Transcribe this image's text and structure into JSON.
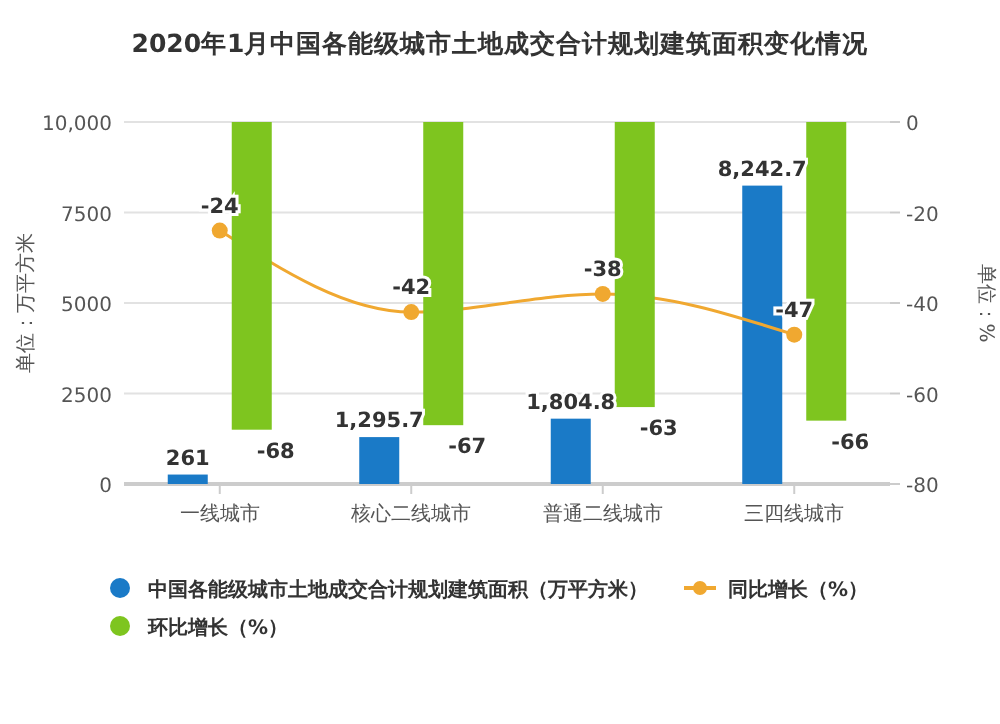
{
  "chart_data": {
    "type": "bar",
    "title": "2020年1月中国各能级城市土地成交合计规划建筑面积变化情况",
    "ylabel": "单位：万平方米",
    "y2label": "单位：%",
    "categories": [
      "一线城市",
      "核心二线城市",
      "普通二线城市",
      "三四线城市"
    ],
    "series": [
      {
        "name": "中国各能级城市土地成交合计规划建筑面积（万平方米）",
        "color": "#1a7ac7",
        "values": [
          261,
          1295.7,
          1804.8,
          8242.7
        ],
        "value_labels": [
          "261",
          "1,295.7",
          "1,804.8",
          "8,242.7"
        ]
      },
      {
        "name": "同比增长（%）",
        "type": "line",
        "axis": "y2",
        "color": "#f0a830",
        "values": [
          -24,
          -42,
          -38,
          -47
        ],
        "marker": "circle"
      },
      {
        "name": "环比增长（%）",
        "axis": "y2",
        "color": "#7ec51f",
        "values": [
          -68,
          -67,
          -63,
          -66
        ]
      }
    ],
    "ylim": [
      0,
      10000
    ],
    "yticks": [
      0,
      {
        "value": 2500,
        "label": "2500"
      },
      {
        "value": 5000,
        "label": "5000"
      },
      {
        "value": 7500,
        "label": "7500"
      },
      {
        "value": 10000,
        "label": "10,000"
      }
    ],
    "y2lim": [
      -80,
      0
    ],
    "y2ticks": [
      -80,
      -60,
      -40,
      -20,
      0
    ],
    "data_labels": true,
    "grid": "y",
    "legend": "bottom"
  }
}
